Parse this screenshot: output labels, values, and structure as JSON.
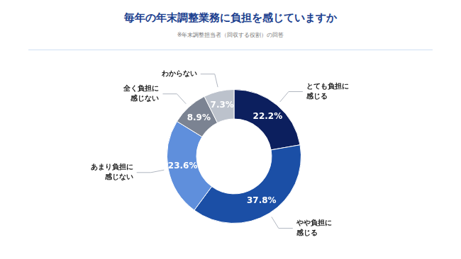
{
  "chart_data": {
    "type": "doughnut",
    "title": "毎年の年末調整業務に負担を感じていますか",
    "subtitle": "※年末調整担当者（回収する役割）の回答",
    "categories": [
      "とても負担に感じる",
      "やや負担に感じる",
      "あまり負担に感じない",
      "全く負担に感じない",
      "わからない"
    ],
    "values": [
      22.2,
      37.8,
      23.6,
      8.9,
      7.3
    ],
    "value_labels": [
      "22.2%",
      "37.8%",
      "23.6%",
      "8.9%",
      "7.3%"
    ],
    "colors": [
      "#0c1f5e",
      "#1b4fa6",
      "#5f8fdc",
      "#7b8392",
      "#bcc2cc"
    ],
    "data_labels": true
  }
}
